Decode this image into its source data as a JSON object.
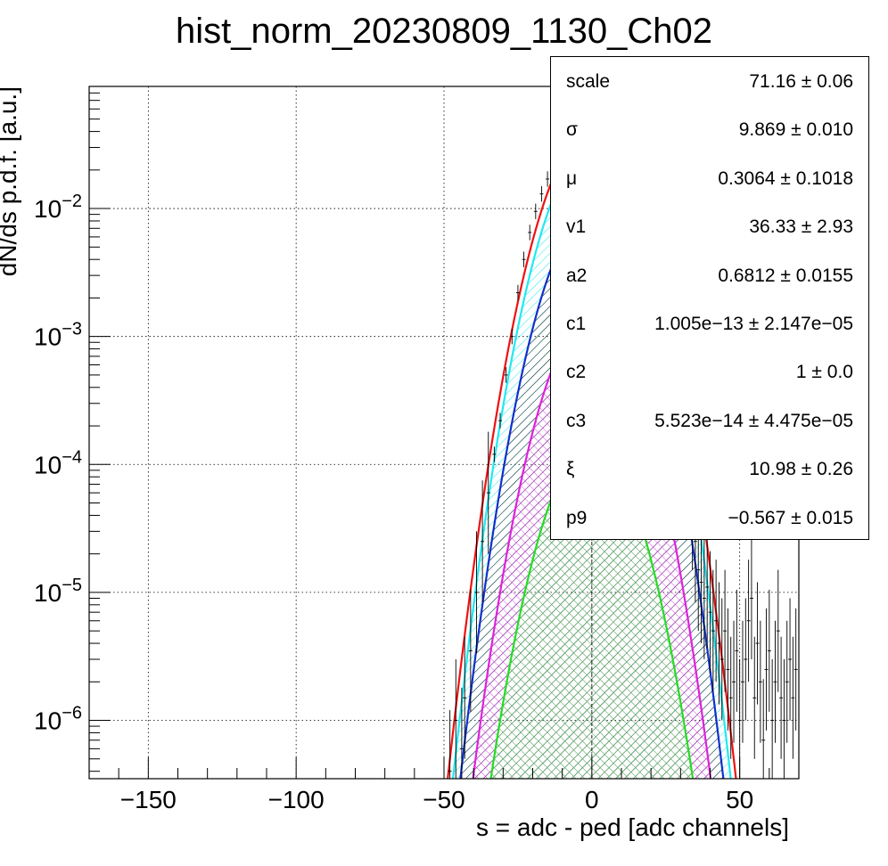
{
  "chart_data": {
    "type": "line",
    "title": "hist_norm_20230809_1130_Ch02",
    "xlabel": "s = adc - ped [adc channels]",
    "ylabel": "dN/ds p.d.f. [a.u.]",
    "xlim": [
      -170,
      70
    ],
    "ylim": [
      3.5e-07,
      0.09
    ],
    "yscale": "log",
    "grid": true,
    "x_ticks": [
      -150,
      -100,
      -50,
      0,
      50
    ],
    "y_ticks": [
      {
        "value": 1e-06,
        "base": "10",
        "exp": "−6"
      },
      {
        "value": 1e-05,
        "base": "10",
        "exp": "−5"
      },
      {
        "value": 0.0001,
        "base": "10",
        "exp": "−4"
      },
      {
        "value": 0.001,
        "base": "10",
        "exp": "−3"
      },
      {
        "value": 0.01,
        "base": "10",
        "exp": "−2"
      }
    ],
    "curves": [
      {
        "color": "#22dd22",
        "peak": 0.00014,
        "mu": 0,
        "sigma": 9.869,
        "fill": "#22dd22",
        "hatch": "cross"
      },
      {
        "color": "#dd22dd",
        "peak": 0.0014,
        "mu": 0,
        "sigma": 9.869,
        "fill": "#dd22dd",
        "hatch": "cross"
      },
      {
        "color": "#1030cc",
        "peak": 0.009,
        "mu": 0,
        "sigma": 9.869,
        "fill": "#000000",
        "hatch": "diag"
      },
      {
        "color": "#22e8f0",
        "peak": 0.029,
        "mu": 0,
        "sigma": 9.869,
        "fill": "#22e8f0",
        "hatch": "diag"
      },
      {
        "color": "#ee1111",
        "peak": 0.04,
        "mu": 0,
        "sigma": 10.1,
        "fill": null,
        "hatch": null
      }
    ],
    "data_points": [
      {
        "x": -48,
        "y": 4e-07
      },
      {
        "x": -46,
        "y": 1e-06
      },
      {
        "x": -44,
        "y": 6e-07
      },
      {
        "x": -43,
        "y": 1.5e-06
      },
      {
        "x": -41,
        "y": 3.5e-06
      },
      {
        "x": -39,
        "y": 1e-05
      },
      {
        "x": -37,
        "y": 2.5e-05
      },
      {
        "x": -35,
        "y": 6e-05
      },
      {
        "x": -33,
        "y": 0.00012
      },
      {
        "x": -31,
        "y": 0.00022
      },
      {
        "x": -29,
        "y": 0.0005
      },
      {
        "x": -27,
        "y": 0.001
      },
      {
        "x": -25,
        "y": 0.0022
      },
      {
        "x": -23,
        "y": 0.004
      },
      {
        "x": -21,
        "y": 0.0065
      },
      {
        "x": -19,
        "y": 0.0095
      },
      {
        "x": -17,
        "y": 0.013
      },
      {
        "x": -15,
        "y": 0.017
      },
      {
        "x": -13,
        "y": 0.022
      },
      {
        "x": -11,
        "y": 0.027
      },
      {
        "x": -9,
        "y": 0.031
      },
      {
        "x": -7,
        "y": 0.035
      },
      {
        "x": -5,
        "y": 0.038
      },
      {
        "x": -3,
        "y": 0.0395
      },
      {
        "x": -1,
        "y": 0.04
      },
      {
        "x": 1,
        "y": 0.04
      },
      {
        "x": 3,
        "y": 0.039
      },
      {
        "x": 5,
        "y": 0.037
      },
      {
        "x": 7,
        "y": 0.034
      },
      {
        "x": 9,
        "y": 0.03
      },
      {
        "x": 11,
        "y": 0.026
      },
      {
        "x": 13,
        "y": 0.021
      },
      {
        "x": 15,
        "y": 0.016
      },
      {
        "x": 17,
        "y": 0.012
      },
      {
        "x": 19,
        "y": 0.0085
      },
      {
        "x": 21,
        "y": 0.0058
      },
      {
        "x": 23,
        "y": 0.0036
      },
      {
        "x": 25,
        "y": 0.002
      },
      {
        "x": 27,
        "y": 0.0011
      },
      {
        "x": 29,
        "y": 0.00055
      },
      {
        "x": 31,
        "y": 0.00025
      },
      {
        "x": 33,
        "y": 0.0001
      },
      {
        "x": 34,
        "y": 4.5e-05
      },
      {
        "x": 35,
        "y": 2.5e-05
      },
      {
        "x": 36,
        "y": 1.5e-05
      },
      {
        "x": 37,
        "y": 1.2e-05
      },
      {
        "x": 38,
        "y": 9e-06
      },
      {
        "x": 39,
        "y": 1.1e-05
      },
      {
        "x": 40,
        "y": 7e-06
      },
      {
        "x": 41,
        "y": 5e-06
      },
      {
        "x": 42,
        "y": 6e-06
      },
      {
        "x": 43,
        "y": 4e-06
      },
      {
        "x": 44,
        "y": 3e-06
      },
      {
        "x": 45,
        "y": 5e-06
      },
      {
        "x": 46,
        "y": 2.5e-06
      },
      {
        "x": 47,
        "y": 1.5e-06
      },
      {
        "x": 48,
        "y": 2e-06
      },
      {
        "x": 49,
        "y": 3.5e-06
      },
      {
        "x": 50,
        "y": 1e-06
      },
      {
        "x": 51,
        "y": 2e-06
      },
      {
        "x": 52,
        "y": 3e-06
      },
      {
        "x": 53,
        "y": 6e-06
      },
      {
        "x": 54,
        "y": 9e-06
      },
      {
        "x": 55,
        "y": 1.5e-06
      },
      {
        "x": 56,
        "y": 4e-06
      },
      {
        "x": 57,
        "y": 2e-06
      },
      {
        "x": 58,
        "y": 7e-07
      },
      {
        "x": 59,
        "y": 2.5e-06
      },
      {
        "x": 60,
        "y": 3.5e-06
      },
      {
        "x": 61,
        "y": 1e-06
      },
      {
        "x": 62,
        "y": 2e-06
      },
      {
        "x": 63,
        "y": 5e-06
      },
      {
        "x": 64,
        "y": 1.5e-06
      },
      {
        "x": 65,
        "y": 1e-06
      },
      {
        "x": 66,
        "y": 2e-06
      },
      {
        "x": 67,
        "y": 3e-06
      },
      {
        "x": 68,
        "y": 1.5e-06
      },
      {
        "x": 69,
        "y": 2.5e-06
      }
    ],
    "stats": [
      {
        "name": "scale",
        "value": "71.16 ± 0.06"
      },
      {
        "name": "σ",
        "value": "9.869 ± 0.010"
      },
      {
        "name": "μ",
        "value": "0.3064 ± 0.1018"
      },
      {
        "name": "v1",
        "value": "36.33 ± 2.93"
      },
      {
        "name": "a2",
        "value": "0.6812 ± 0.0155"
      },
      {
        "name": "c1",
        "value": "1.005e−13 ± 2.147e−05"
      },
      {
        "name": "c2",
        "value": "1 ± 0.0"
      },
      {
        "name": "c3",
        "value": "5.523e−14 ± 4.475e−05"
      },
      {
        "name": "ξ",
        "value": "10.98 ± 0.26"
      },
      {
        "name": "p9",
        "value": "−0.567 ± 0.015"
      }
    ]
  }
}
